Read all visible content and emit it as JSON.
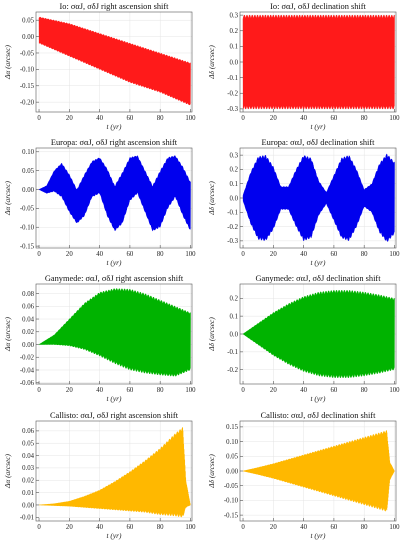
{
  "chart_data": [
    {
      "type": "line",
      "title": "Io: σαJ, σδJ right ascension shift",
      "xlabel": "t (yr)",
      "ylabel": "Δα (arcsec)",
      "color": "#ff1a1a",
      "xlim": [
        -2,
        101
      ],
      "ylim": [
        -0.23,
        0.075
      ],
      "xticks": [
        0,
        20,
        40,
        60,
        80,
        100
      ],
      "yticks": [
        0.05,
        0.0,
        -0.05,
        -0.1,
        -0.15,
        -0.2
      ],
      "ytick_labels": [
        "0.05",
        "0.00",
        "-0.05",
        "-0.10",
        "-0.15",
        "-0.20"
      ],
      "grid": true,
      "x": [
        0,
        10,
        20,
        30,
        40,
        50,
        60,
        70,
        80,
        90,
        100
      ],
      "upper": [
        0.06,
        0.05,
        0.04,
        0.025,
        0.01,
        -0.005,
        -0.02,
        -0.035,
        -0.05,
        -0.065,
        -0.08
      ],
      "lower": [
        -0.02,
        -0.04,
        -0.06,
        -0.08,
        -0.1,
        -0.12,
        -0.14,
        -0.155,
        -0.17,
        -0.19,
        -0.21
      ]
    },
    {
      "type": "line",
      "title": "Io: σαJ, σδJ declination shift",
      "xlabel": "t (yr)",
      "ylabel": "Δδ (arcsec)",
      "color": "#ff1a1a",
      "xlim": [
        -2,
        101
      ],
      "ylim": [
        -0.32,
        0.32
      ],
      "xticks": [
        0,
        20,
        40,
        60,
        80,
        100
      ],
      "yticks": [
        0.3,
        0.2,
        0.1,
        0.0,
        -0.1,
        -0.2,
        -0.3
      ],
      "ytick_labels": [
        "0.3",
        "0.2",
        "0.1",
        "0.0",
        "-0.1",
        "-0.2",
        "-0.3"
      ],
      "grid": true,
      "x": [
        0,
        20,
        40,
        60,
        80,
        100
      ],
      "upper": [
        0.3,
        0.3,
        0.3,
        0.3,
        0.3,
        0.3
      ],
      "lower": [
        -0.3,
        -0.3,
        -0.3,
        -0.3,
        -0.3,
        -0.3
      ]
    },
    {
      "type": "line",
      "title": "Europa: σαJ, σδJ right ascension shift",
      "xlabel": "t (yr)",
      "ylabel": "Δα (arcsec)",
      "color": "#0000ee",
      "xlim": [
        -2,
        101
      ],
      "ylim": [
        -0.155,
        0.11
      ],
      "xticks": [
        0,
        20,
        40,
        60,
        80,
        100
      ],
      "yticks": [
        0.1,
        0.05,
        0.0,
        -0.05,
        -0.1,
        -0.15
      ],
      "ytick_labels": [
        "0.10",
        "0.05",
        "0.00",
        "-0.05",
        "-0.10",
        "-0.15"
      ],
      "grid": true,
      "x": [
        0,
        5,
        10,
        15,
        20,
        25,
        30,
        35,
        40,
        45,
        50,
        55,
        60,
        65,
        70,
        75,
        80,
        85,
        90,
        95,
        100
      ],
      "upper": [
        0.0,
        0.01,
        0.05,
        0.07,
        0.04,
        0.0,
        0.04,
        0.075,
        0.085,
        0.055,
        0.01,
        0.045,
        0.085,
        0.09,
        0.05,
        0.01,
        0.05,
        0.085,
        0.09,
        0.06,
        0.02
      ],
      "lower": [
        0.0,
        -0.01,
        -0.005,
        -0.02,
        -0.06,
        -0.09,
        -0.07,
        -0.02,
        -0.01,
        -0.07,
        -0.11,
        -0.09,
        -0.03,
        -0.01,
        -0.06,
        -0.11,
        -0.1,
        -0.05,
        -0.02,
        -0.07,
        -0.11
      ]
    },
    {
      "type": "line",
      "title": "Europa: σαJ, σδJ declination shift",
      "xlabel": "t (yr)",
      "ylabel": "Δδ (arcsec)",
      "color": "#0000ee",
      "xlim": [
        -2,
        101
      ],
      "ylim": [
        -0.35,
        0.35
      ],
      "xticks": [
        0,
        20,
        40,
        60,
        80,
        100
      ],
      "yticks": [
        0.3,
        0.2,
        0.1,
        0.0,
        -0.1,
        -0.2,
        -0.3
      ],
      "ytick_labels": [
        "0.3",
        "0.2",
        "0.1",
        "0.0",
        "-0.1",
        "-0.2",
        "-0.3"
      ],
      "grid": true,
      "x": [
        0,
        5,
        10,
        15,
        20,
        25,
        30,
        35,
        40,
        45,
        50,
        55,
        60,
        65,
        70,
        75,
        80,
        85,
        90,
        95,
        100
      ],
      "upper": [
        0.02,
        0.18,
        0.29,
        0.3,
        0.22,
        0.08,
        0.08,
        0.2,
        0.3,
        0.28,
        0.12,
        0.04,
        0.16,
        0.28,
        0.3,
        0.2,
        0.06,
        0.1,
        0.24,
        0.31,
        0.25
      ],
      "lower": [
        -0.02,
        -0.18,
        -0.29,
        -0.3,
        -0.22,
        -0.08,
        -0.08,
        -0.2,
        -0.3,
        -0.28,
        -0.12,
        -0.04,
        -0.16,
        -0.28,
        -0.3,
        -0.2,
        -0.06,
        -0.1,
        -0.24,
        -0.31,
        -0.25
      ]
    },
    {
      "type": "line",
      "title": "Ganymede: σαJ, σδJ right ascension shift",
      "xlabel": "t (yr)",
      "ylabel": "Δα (arcsec)",
      "color": "#00b300",
      "xlim": [
        -2,
        101
      ],
      "ylim": [
        -0.062,
        0.095
      ],
      "xticks": [
        0,
        20,
        40,
        60,
        80,
        100
      ],
      "yticks": [
        0.08,
        0.06,
        0.04,
        0.02,
        0.0,
        -0.02,
        -0.04,
        -0.06
      ],
      "ytick_labels": [
        "0.08",
        "0.06",
        "0.04",
        "0.02",
        "0.00",
        "-0.02",
        "-0.04",
        "-0.06"
      ],
      "grid": true,
      "x": [
        0,
        10,
        20,
        30,
        40,
        50,
        60,
        70,
        80,
        90,
        100
      ],
      "upper": [
        0.0,
        0.015,
        0.04,
        0.065,
        0.082,
        0.088,
        0.087,
        0.08,
        0.07,
        0.06,
        0.05
      ],
      "lower": [
        0.0,
        0.0,
        -0.002,
        -0.008,
        -0.018,
        -0.03,
        -0.04,
        -0.045,
        -0.048,
        -0.05,
        -0.04
      ]
    },
    {
      "type": "line",
      "title": "Ganymede: σαJ, σδJ declination shift",
      "xlabel": "t (yr)",
      "ylabel": "Δδ (arcsec)",
      "color": "#00b300",
      "xlim": [
        -2,
        101
      ],
      "ylim": [
        -0.28,
        0.28
      ],
      "xticks": [
        0,
        20,
        40,
        60,
        80,
        100
      ],
      "yticks": [
        0.2,
        0.1,
        0.0,
        -0.1,
        -0.2
      ],
      "ytick_labels": [
        "0.2",
        "0.1",
        "0.0",
        "-0.1",
        "-0.2"
      ],
      "grid": true,
      "x": [
        0,
        10,
        20,
        30,
        40,
        50,
        60,
        70,
        80,
        90,
        100
      ],
      "upper": [
        0.0,
        0.06,
        0.12,
        0.17,
        0.21,
        0.235,
        0.245,
        0.245,
        0.235,
        0.22,
        0.2
      ],
      "lower": [
        0.0,
        -0.06,
        -0.12,
        -0.17,
        -0.21,
        -0.235,
        -0.245,
        -0.245,
        -0.235,
        -0.22,
        -0.2
      ]
    },
    {
      "type": "line",
      "title": "Callisto: σαJ, σδJ right ascension shift",
      "xlabel": "t (yr)",
      "ylabel": "Δα (arcsec)",
      "color": "#ffb800",
      "xlim": [
        -2,
        101
      ],
      "ylim": [
        -0.013,
        0.068
      ],
      "xticks": [
        0,
        20,
        40,
        60,
        80,
        100
      ],
      "yticks": [
        0.06,
        0.05,
        0.04,
        0.03,
        0.02,
        0.01,
        0.0,
        -0.01
      ],
      "ytick_labels": [
        "0.06",
        "0.05",
        "0.04",
        "0.03",
        "0.02",
        "0.01",
        "0.00",
        "-0.01"
      ],
      "grid": true,
      "x": [
        0,
        10,
        20,
        30,
        40,
        50,
        60,
        70,
        80,
        90,
        95,
        97,
        100
      ],
      "upper": [
        0.0,
        0.001,
        0.003,
        0.007,
        0.012,
        0.019,
        0.027,
        0.036,
        0.046,
        0.058,
        0.063,
        0.02,
        0.0
      ],
      "lower": [
        0.0,
        -0.0005,
        -0.001,
        -0.002,
        -0.003,
        -0.004,
        -0.005,
        -0.006,
        -0.008,
        -0.009,
        -0.01,
        -0.002,
        0.0
      ]
    },
    {
      "type": "line",
      "title": "Callisto: σαJ, σδJ declination shift",
      "xlabel": "t (yr)",
      "ylabel": "Δδ (arcsec)",
      "color": "#ffb800",
      "xlim": [
        -2,
        101
      ],
      "ylim": [
        -0.17,
        0.17
      ],
      "xticks": [
        0,
        20,
        40,
        60,
        80,
        100
      ],
      "yticks": [
        0.15,
        0.1,
        0.05,
        0.0,
        -0.05,
        -0.1,
        -0.15
      ],
      "ytick_labels": [
        "0.15",
        "0.10",
        "0.05",
        "0.00",
        "-0.05",
        "-0.10",
        "-0.15"
      ],
      "grid": true,
      "x": [
        0,
        10,
        20,
        30,
        40,
        50,
        60,
        70,
        80,
        90,
        95,
        97,
        100
      ],
      "upper": [
        0.0,
        0.012,
        0.025,
        0.04,
        0.055,
        0.07,
        0.085,
        0.1,
        0.115,
        0.13,
        0.138,
        0.03,
        0.0
      ],
      "lower": [
        0.0,
        -0.012,
        -0.025,
        -0.04,
        -0.055,
        -0.07,
        -0.085,
        -0.1,
        -0.115,
        -0.13,
        -0.138,
        -0.03,
        0.0
      ]
    }
  ]
}
